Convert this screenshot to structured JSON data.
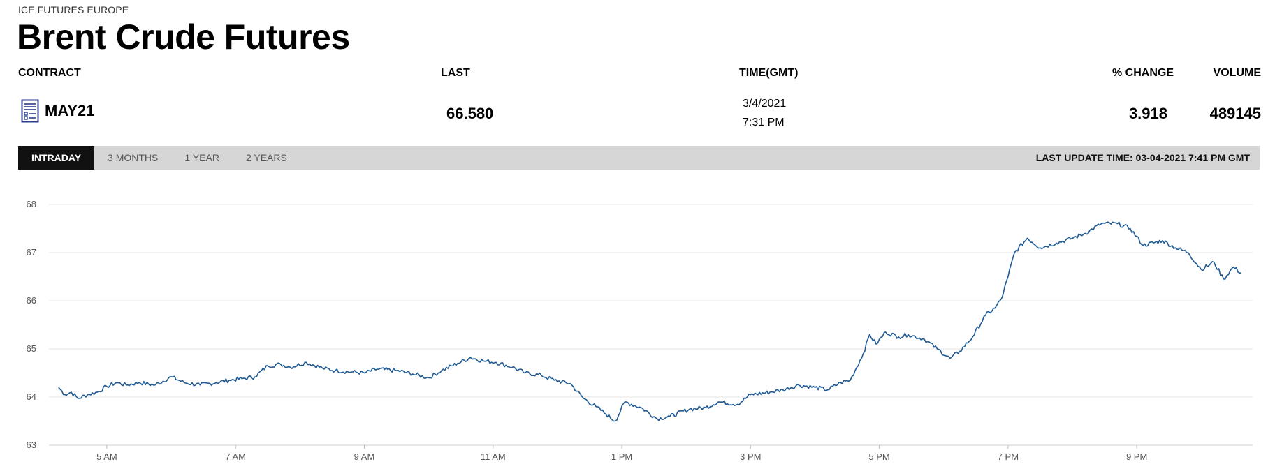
{
  "header": {
    "exchange": "ICE FUTURES EUROPE",
    "title": "Brent Crude Futures"
  },
  "columns": {
    "contract": "CONTRACT",
    "last": "LAST",
    "time": "TIME(GMT)",
    "change": "% CHANGE",
    "volume": "VOLUME"
  },
  "row": {
    "icon": "document-list-icon",
    "contract": "MAY21",
    "last": "66.580",
    "date": "3/4/2021",
    "time": "7:31 PM",
    "change": "3.918",
    "volume": "489145"
  },
  "tabs": [
    {
      "label": "INTRADAY",
      "active": true
    },
    {
      "label": "3 MONTHS",
      "active": false
    },
    {
      "label": "1 YEAR",
      "active": false
    },
    {
      "label": "2 YEARS",
      "active": false
    }
  ],
  "last_update": "LAST UPDATE TIME: 03-04-2021 7:41 PM GMT",
  "colors": {
    "line": "#1f5a94",
    "grid": "#e6e6e6",
    "tabbar": "#d6d6d6",
    "active_tab": "#111111"
  },
  "chart_data": {
    "type": "line",
    "x_unit": "hour",
    "xlim": [
      4.1,
      22.8
    ],
    "ylim": [
      63,
      68
    ],
    "y_ticks": [
      63,
      64,
      65,
      66,
      67,
      68
    ],
    "x_ticks": [
      {
        "value": 5,
        "label": "5 AM"
      },
      {
        "value": 7,
        "label": "7 AM"
      },
      {
        "value": 9,
        "label": "9 AM"
      },
      {
        "value": 11,
        "label": "11 AM"
      },
      {
        "value": 13,
        "label": "1 PM"
      },
      {
        "value": 15,
        "label": "3 PM"
      },
      {
        "value": 17,
        "label": "5 PM"
      },
      {
        "value": 19,
        "label": "7 PM"
      },
      {
        "value": 21,
        "label": "9 PM"
      }
    ],
    "grid": true,
    "series": [
      {
        "x": [
          4.25,
          4.35,
          4.45,
          4.55,
          4.7,
          4.85,
          5.0,
          5.15,
          5.3,
          5.5,
          5.75,
          6.0,
          6.2,
          6.45,
          6.7,
          6.9,
          7.1,
          7.3,
          7.5,
          7.7,
          7.85,
          8.1,
          8.35,
          8.55,
          8.8,
          9.0,
          9.2,
          9.5,
          9.75,
          10.0,
          10.2,
          10.45,
          10.65,
          10.85,
          11.05,
          11.3,
          11.5,
          11.75,
          11.95,
          12.2,
          12.4,
          12.6,
          12.75,
          12.9,
          13.05,
          13.3,
          13.55,
          13.75,
          14.05,
          14.3,
          14.5,
          14.8,
          15.0,
          15.3,
          15.5,
          15.75,
          16.0,
          16.2,
          16.4,
          16.55,
          16.75,
          16.85,
          16.95,
          17.1,
          17.3,
          17.45,
          17.7,
          17.9,
          18.1,
          18.25,
          18.45,
          18.65,
          18.8,
          18.9,
          19.0,
          19.1,
          19.3,
          19.5,
          19.75,
          20.0,
          20.2,
          20.45,
          20.7,
          20.9,
          21.1,
          21.4,
          21.6,
          21.8,
          22.0,
          22.2,
          22.35,
          22.5,
          22.62
        ],
        "y": [
          64.2,
          64.05,
          64.1,
          63.97,
          64.05,
          64.1,
          64.22,
          64.3,
          64.25,
          64.3,
          64.25,
          64.42,
          64.3,
          64.25,
          64.3,
          64.35,
          64.38,
          64.42,
          64.65,
          64.68,
          64.62,
          64.72,
          64.6,
          64.55,
          64.52,
          64.5,
          64.58,
          64.55,
          64.48,
          64.4,
          64.55,
          64.7,
          64.82,
          64.75,
          64.72,
          64.62,
          64.5,
          64.45,
          64.35,
          64.28,
          63.98,
          63.8,
          63.65,
          63.5,
          63.9,
          63.78,
          63.55,
          63.6,
          63.75,
          63.78,
          63.9,
          63.85,
          64.05,
          64.1,
          64.15,
          64.25,
          64.2,
          64.15,
          64.3,
          64.35,
          64.9,
          65.3,
          65.1,
          65.35,
          65.25,
          65.3,
          65.2,
          65.0,
          64.8,
          64.95,
          65.25,
          65.7,
          65.85,
          66.05,
          66.5,
          67.0,
          67.3,
          67.1,
          67.2,
          67.3,
          67.4,
          67.6,
          67.6,
          67.5,
          67.15,
          67.25,
          67.1,
          67.0,
          66.65,
          66.8,
          66.45,
          66.7,
          66.58
        ]
      }
    ]
  }
}
